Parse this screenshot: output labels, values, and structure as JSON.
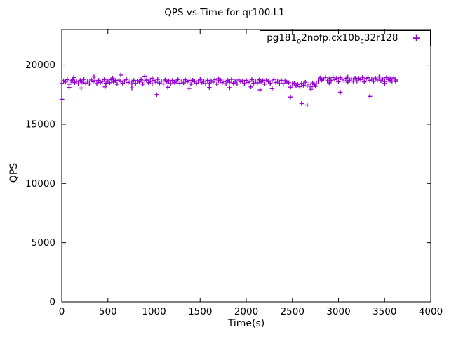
{
  "chart": {
    "title": "QPS vs Time for qr100.L1",
    "xlabel": "Time(s)",
    "ylabel": "QPS",
    "legend": {
      "parts": [
        {
          "text": "pg181",
          "sub": false
        },
        {
          "text": "o",
          "sub": true
        },
        {
          "text": "2nofp.cx10b",
          "sub": false
        },
        {
          "text": "c",
          "sub": true
        },
        {
          "text": "32r128",
          "sub": false
        }
      ],
      "marker_glyph": "+"
    }
  },
  "chart_data": {
    "type": "scatter",
    "title": "QPS vs Time for qr100.L1",
    "xlabel": "Time(s)",
    "ylabel": "QPS",
    "xlim": [
      0,
      4000
    ],
    "ylim": [
      0,
      23000
    ],
    "xticks": [
      0,
      500,
      1000,
      1500,
      2000,
      2500,
      3000,
      3500,
      4000
    ],
    "yticks": [
      0,
      5000,
      10000,
      15000,
      20000
    ],
    "grid": false,
    "legend_position": "top-right-inside-box",
    "marker": "plus",
    "color": "#9400D3",
    "series": [
      {
        "name": "pg181_o2nofp.cx10b_c32r128",
        "x_start": 0,
        "x_step": 20,
        "values": [
          18450,
          18680,
          18560,
          18760,
          18380,
          18660,
          18730,
          18510,
          18610,
          18420,
          18700,
          18540,
          18790,
          18480,
          18640,
          18400,
          18740,
          18580,
          18670,
          18440,
          18710,
          18530,
          18620,
          18770,
          18470,
          18650,
          18500,
          18750,
          18570,
          18690,
          18390,
          18720,
          18600,
          18460,
          18660,
          18780,
          18520,
          18630,
          18430,
          18700,
          18450,
          18680,
          18560,
          18760,
          18380,
          18660,
          18730,
          18510,
          18610,
          18420,
          18700,
          18540,
          18790,
          18480,
          18640,
          18400,
          18740,
          18580,
          18670,
          18440,
          18710,
          18530,
          18620,
          18770,
          18470,
          18650,
          18500,
          18750,
          18570,
          18690,
          18390,
          18720,
          18600,
          18460,
          18660,
          18780,
          18520,
          18630,
          18430,
          18700,
          18450,
          18680,
          18560,
          18760,
          18380,
          18660,
          18730,
          18510,
          18610,
          18420,
          18700,
          18540,
          18790,
          18480,
          18640,
          18400,
          18740,
          18580,
          18670,
          18440,
          18710,
          18530,
          18620,
          18770,
          18470,
          18650,
          18500,
          18750,
          18570,
          18690,
          18390,
          18720,
          18600,
          18460,
          18660,
          18780,
          18520,
          18630,
          18430,
          18700,
          18450,
          18680,
          18560,
          18510,
          18130,
          18410,
          18480,
          18260,
          18360,
          18170,
          18450,
          18290,
          18540,
          18230,
          18390,
          18150,
          18490,
          18330,
          18420,
          18640,
          18910,
          18730,
          18820,
          18970,
          18670,
          18850,
          18700,
          18950,
          18770,
          18890,
          18590,
          18920,
          18800,
          18660,
          18860,
          18980,
          18720,
          18830,
          18630,
          18900,
          18650,
          18880,
          18760,
          18960,
          18580,
          18860,
          18930,
          18710,
          18810,
          18620,
          18900,
          18740,
          18990,
          18680,
          18840,
          18600,
          18940,
          18780,
          18870,
          18640,
          18910,
          18730
        ],
        "extra_points": [
          [
            3,
            17100
          ],
          [
            640,
            19150
          ],
          [
            1030,
            17500
          ],
          [
            2150,
            17900
          ],
          [
            2480,
            17300
          ],
          [
            2600,
            16750
          ],
          [
            2660,
            16620
          ],
          [
            3020,
            17700
          ],
          [
            3340,
            17350
          ],
          [
            80,
            18100
          ],
          [
            210,
            18050
          ],
          [
            350,
            19000
          ],
          [
            470,
            18150
          ],
          [
            760,
            18060
          ],
          [
            900,
            19050
          ],
          [
            1150,
            18120
          ],
          [
            1380,
            18020
          ],
          [
            1600,
            18100
          ],
          [
            1820,
            18080
          ],
          [
            2050,
            18150
          ],
          [
            2280,
            18000
          ],
          [
            2700,
            17950
          ],
          [
            2900,
            18500
          ],
          [
            3100,
            18550
          ],
          [
            3500,
            18450
          ],
          [
            130,
            18950
          ],
          [
            550,
            18900
          ],
          [
            980,
            18880
          ],
          [
            1700,
            18850
          ],
          [
            3620,
            18600
          ],
          [
            3560,
            18700
          ],
          [
            2750,
            18200
          ]
        ]
      }
    ]
  },
  "layout_note": "single gnuplot-style scatter plot"
}
